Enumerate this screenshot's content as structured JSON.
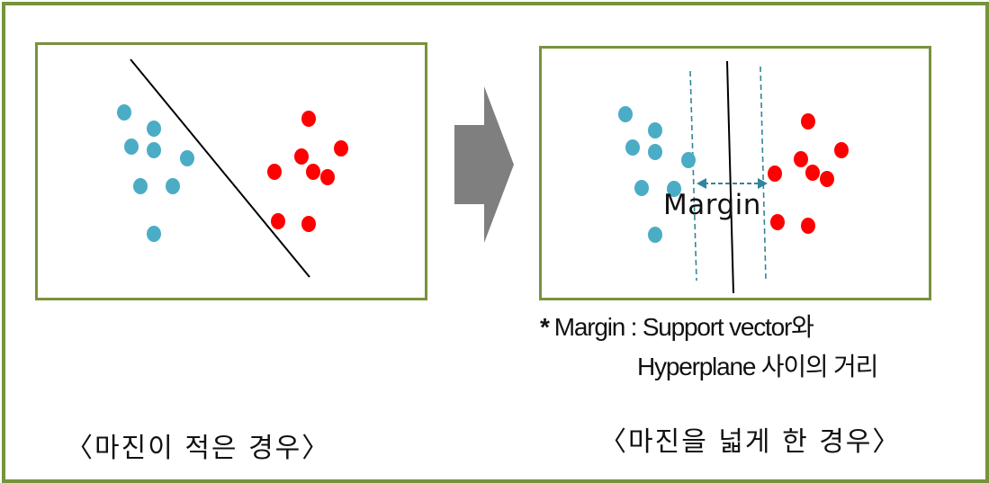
{
  "colors": {
    "frame_border": "#77933c",
    "class_a_point": "#4bacc6",
    "class_b_point": "#ff0000",
    "arrow": "#7f7f7f",
    "hyperplane": "#000000",
    "margin_line": "#31859c",
    "margin_arrow": "#31859c"
  },
  "left_panel": {
    "caption": "〈마진이 적은 경우〉"
  },
  "right_panel": {
    "margin_label": "Margin",
    "footnote_line1": "Margin : Support vector와",
    "footnote_star": "*",
    "footnote_line2": "Hyperplane 사이의 거리",
    "caption": "〈마진을 넓게 한 경우〉"
  },
  "transition_icon": "right-arrow-icon"
}
